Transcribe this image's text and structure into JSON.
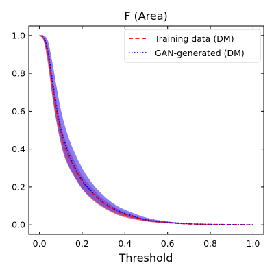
{
  "chart_data": {
    "type": "line",
    "title": "F (Area)",
    "xlabel": "Threshold",
    "ylabel": "",
    "xlim": [
      -0.05,
      1.05
    ],
    "ylim": [
      -0.05,
      1.05
    ],
    "xticks": [
      0.0,
      0.2,
      0.4,
      0.6,
      0.8,
      1.0
    ],
    "xtick_labels": [
      "0.0",
      "0.2",
      "0.4",
      "0.6",
      "0.8",
      "1.0"
    ],
    "yticks": [
      0.0,
      0.2,
      0.4,
      0.6,
      0.8,
      1.0
    ],
    "ytick_labels": [
      "0.0",
      "0.2",
      "0.4",
      "0.6",
      "0.8",
      "1.0"
    ],
    "grid": false,
    "legend_position": "top-right",
    "series": [
      {
        "name": "Training data (DM)",
        "color": "#ff0000",
        "band_color": "#e8453c",
        "style": "dashed",
        "x": [
          0.0,
          0.02,
          0.04,
          0.06,
          0.08,
          0.1,
          0.12,
          0.15,
          0.2,
          0.25,
          0.3,
          0.35,
          0.4,
          0.5,
          0.6,
          0.7,
          0.8,
          0.9,
          1.0
        ],
        "y": [
          1.0,
          0.985,
          0.9,
          0.74,
          0.6,
          0.49,
          0.41,
          0.33,
          0.23,
          0.165,
          0.115,
          0.08,
          0.055,
          0.025,
          0.012,
          0.005,
          0.002,
          0.001,
          0.0
        ],
        "band_low": [
          1.0,
          0.97,
          0.85,
          0.68,
          0.54,
          0.43,
          0.35,
          0.28,
          0.19,
          0.13,
          0.09,
          0.06,
          0.04,
          0.018,
          0.008,
          0.003,
          0.001,
          0.0,
          0.0
        ],
        "band_high": [
          1.0,
          0.99,
          0.93,
          0.78,
          0.64,
          0.53,
          0.45,
          0.37,
          0.26,
          0.19,
          0.135,
          0.095,
          0.065,
          0.03,
          0.015,
          0.007,
          0.003,
          0.001,
          0.0
        ]
      },
      {
        "name": "GAN-generated (DM)",
        "color": "#0000ff",
        "band_color": "#5b48f0",
        "style": "dotted",
        "x": [
          0.0,
          0.02,
          0.04,
          0.06,
          0.08,
          0.1,
          0.12,
          0.15,
          0.2,
          0.25,
          0.3,
          0.35,
          0.4,
          0.5,
          0.6,
          0.7,
          0.8,
          0.9,
          1.0
        ],
        "y": [
          1.0,
          0.99,
          0.92,
          0.77,
          0.63,
          0.51,
          0.43,
          0.34,
          0.235,
          0.17,
          0.12,
          0.085,
          0.06,
          0.027,
          0.013,
          0.006,
          0.002,
          0.001,
          0.0
        ],
        "band_low": [
          1.0,
          0.975,
          0.87,
          0.69,
          0.55,
          0.44,
          0.36,
          0.28,
          0.19,
          0.135,
          0.095,
          0.065,
          0.045,
          0.02,
          0.009,
          0.004,
          0.001,
          0.0,
          0.0
        ],
        "band_high": [
          1.0,
          1.0,
          0.97,
          0.86,
          0.73,
          0.61,
          0.52,
          0.42,
          0.3,
          0.215,
          0.155,
          0.11,
          0.08,
          0.038,
          0.018,
          0.008,
          0.003,
          0.001,
          0.0
        ]
      }
    ]
  }
}
